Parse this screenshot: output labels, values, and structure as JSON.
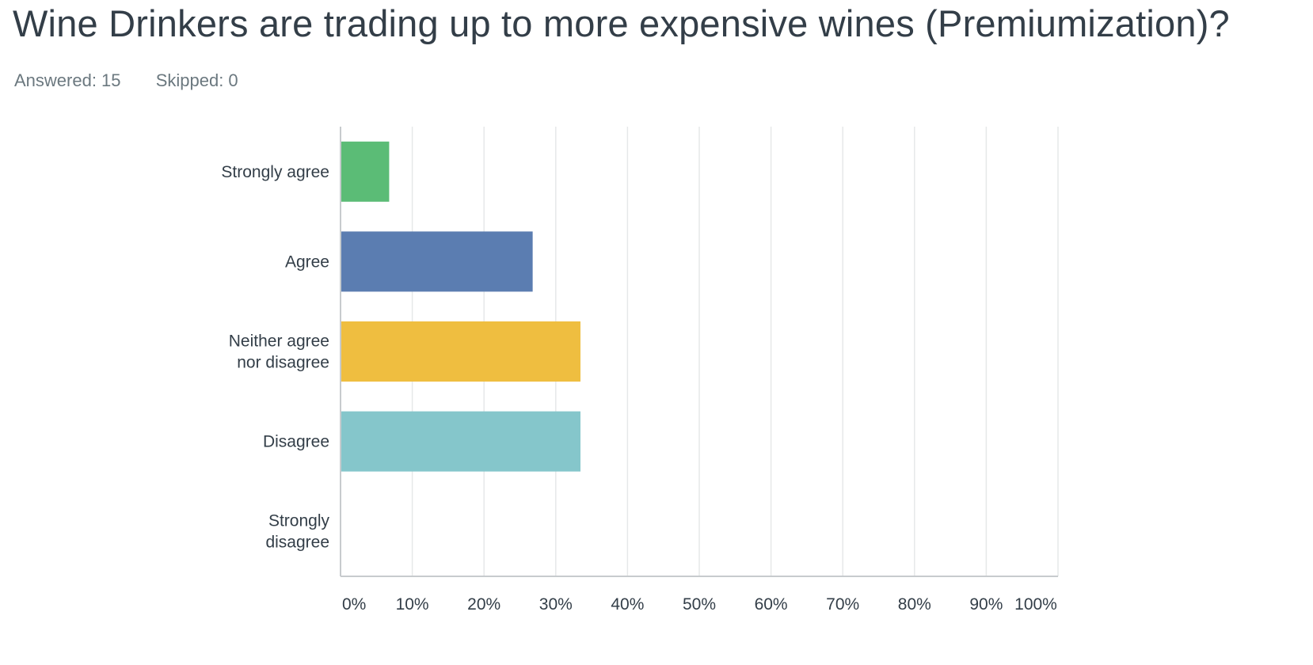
{
  "page": {
    "title": "Wine Drinkers are trading up to more expensive wines (Premiumization)?",
    "answered_label": "Answered:",
    "answered_value": "15",
    "skipped_label": "Skipped:",
    "skipped_value": "0"
  },
  "chart_data": {
    "type": "bar",
    "orientation": "horizontal",
    "categories": [
      [
        "Strongly agree"
      ],
      [
        "Agree"
      ],
      [
        "Neither agree",
        "nor disagree"
      ],
      [
        "Disagree"
      ],
      [
        "Strongly",
        "disagree"
      ]
    ],
    "values": [
      6.67,
      26.67,
      33.33,
      33.33,
      0
    ],
    "colors": [
      "#5bbc76",
      "#5b7db1",
      "#efbe40",
      "#85c6cb",
      "#9e7ec4"
    ],
    "value_unit": "%",
    "xlim": [
      0,
      100
    ],
    "x_ticks": [
      "0%",
      "10%",
      "20%",
      "30%",
      "40%",
      "50%",
      "60%",
      "70%",
      "80%",
      "90%",
      "100%"
    ],
    "grid": true,
    "legend": "none",
    "axis_color": "#c7cbce",
    "grid_color": "#e6e8e9",
    "label_color": "#333e48"
  }
}
